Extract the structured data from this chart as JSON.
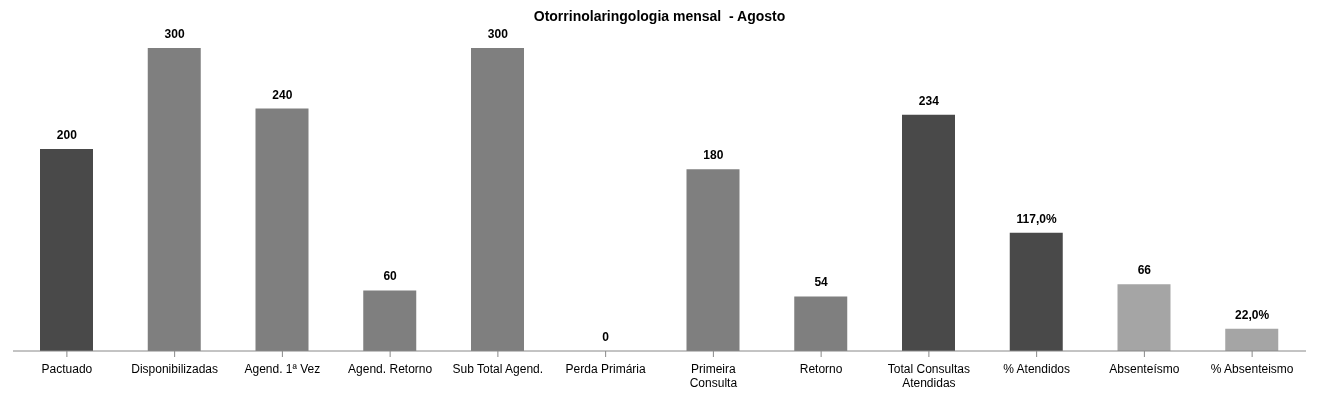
{
  "chart_data": {
    "type": "bar",
    "title": "Otorrinolaringologia mensal  - Agosto",
    "categories": [
      "Pactuado",
      "Disponibilizadas",
      "Agend. 1ª Vez",
      "Agend. Retorno",
      "Sub Total Agend.",
      "Perda Primária",
      "Primeira Consulta",
      "Retorno",
      "Total Consultas Atendidas",
      "% Atendidos",
      "Absenteísmo",
      "% Absenteismo"
    ],
    "values": [
      200,
      300,
      240,
      60,
      300,
      0,
      180,
      54,
      234,
      117,
      66,
      22
    ],
    "value_labels": [
      "200",
      "300",
      "240",
      "60",
      "300",
      "0",
      "180",
      "54",
      "234",
      "117,0%",
      "66",
      "22,0%"
    ],
    "colors": [
      "#494949",
      "#7f7f7f",
      "#7f7f7f",
      "#7f7f7f",
      "#7f7f7f",
      "#7f7f7f",
      "#7f7f7f",
      "#7f7f7f",
      "#494949",
      "#494949",
      "#a5a5a5",
      "#a5a5a5"
    ],
    "grid": false,
    "legend": false
  }
}
